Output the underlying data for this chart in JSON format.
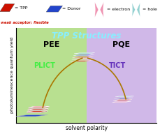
{
  "title": "TPP Structures",
  "xlabel": "solvent polarity",
  "ylabel": "photoluminescence quantum yield",
  "bg_left_color": "#b8e090",
  "bg_right_color": "#d0b8e8",
  "title_color": "#88eeff",
  "pee_label": "PEE",
  "pqe_label": "PQE",
  "plict_label": "PLICT",
  "tict_label": "TICT",
  "plict_color": "#44ee44",
  "tict_color": "#6633bb",
  "arrow_color": "#aa7700",
  "legend_tpp": "= TPP",
  "legend_donor": "= Donor",
  "legend_electron": "= electron",
  "legend_hole": "= hole",
  "legend_sub": "weak acceptor; flexible",
  "red_color": "#cc1100",
  "blue_color": "#2244cc",
  "pink_color": "#ee88aa",
  "teal_color": "#88cccc",
  "dark_blue": "#334499"
}
